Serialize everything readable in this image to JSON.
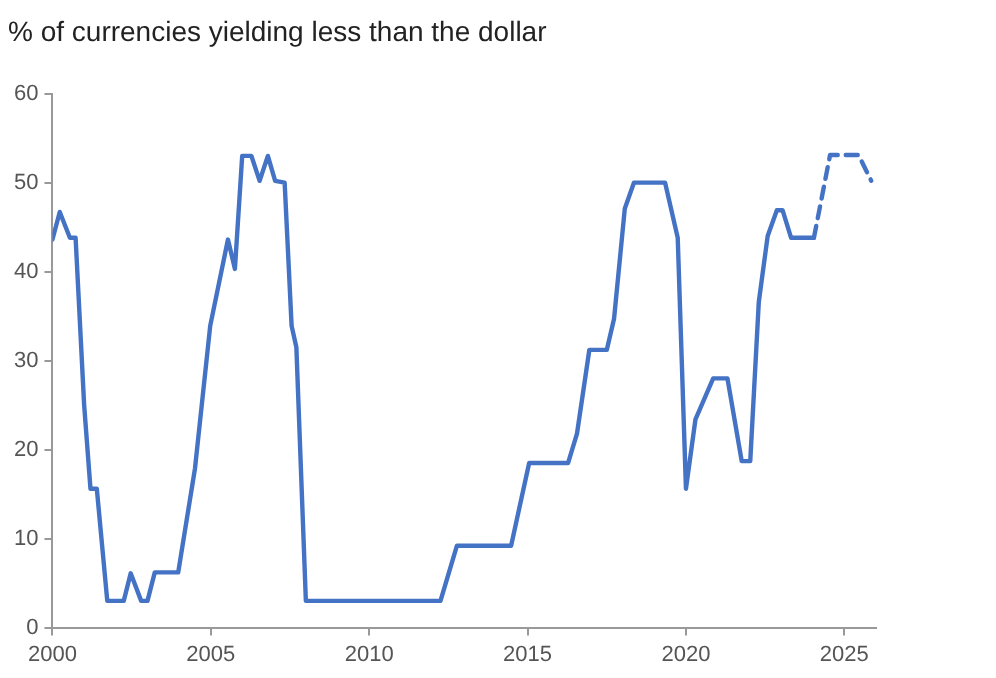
{
  "chart_data": {
    "type": "line",
    "title": "% of currencies yielding less than the dollar",
    "xlim": [
      2000,
      2026
    ],
    "xticks": [
      2000,
      2005,
      2010,
      2015,
      2020,
      2025
    ],
    "ylim": [
      0,
      60
    ],
    "yticks": [
      0,
      10,
      20,
      30,
      40,
      50,
      60
    ],
    "grid": false,
    "legend": false,
    "marker": "none",
    "series": [
      {
        "color": "#4472c4",
        "line_style": "solid",
        "x": [
          2000.0,
          2000.23,
          2000.55,
          2000.73,
          2001.0,
          2001.2,
          2001.4,
          2001.73,
          2002.25,
          2002.47,
          2002.8,
          2003.0,
          2003.23,
          2003.97,
          2004.5,
          2004.98,
          2005.54,
          2005.76,
          2005.99,
          2006.28,
          2006.54,
          2006.8,
          2007.03,
          2007.33,
          2007.55,
          2007.7,
          2008.0,
          2012.25,
          2012.77,
          2014.48,
          2015.05,
          2016.28,
          2016.56,
          2016.95,
          2017.5,
          2017.73,
          2018.07,
          2018.36,
          2019.34,
          2019.74,
          2020.0,
          2020.3,
          2020.86,
          2021.31,
          2021.76,
          2022.03,
          2022.3,
          2022.58,
          2022.87,
          2023.05,
          2023.32,
          2024.04
        ],
        "values": [
          43.6,
          46.7,
          43.8,
          43.8,
          25,
          15.6,
          15.6,
          3,
          3,
          6.1,
          3,
          3,
          6.2,
          6.2,
          17.9,
          33.9,
          43.6,
          40.3,
          53,
          53,
          50.2,
          53,
          50.2,
          50,
          33.9,
          31.5,
          3,
          3,
          9.2,
          9.2,
          18.5,
          18.5,
          21.8,
          31.2,
          31.2,
          34.7,
          47.1,
          50,
          50,
          43.8,
          15.6,
          23.4,
          28,
          28,
          18.7,
          18.7,
          36.6,
          44,
          46.9,
          46.9,
          43.8,
          43.8
        ]
      },
      {
        "color": "#4472c4",
        "line_style": "dashed",
        "x": [
          2024.04,
          2024.55,
          2025.45,
          2025.85
        ],
        "values": [
          43.8,
          53.1,
          53.1,
          50.2
        ]
      }
    ]
  }
}
